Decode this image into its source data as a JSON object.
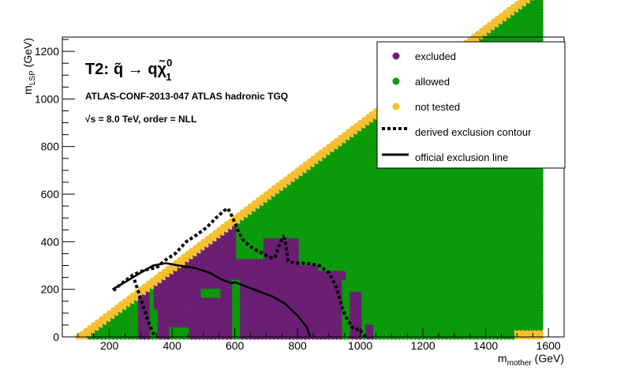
{
  "chart_data": {
    "type": "scatter",
    "title_prefix": "T2:",
    "process": "q̃ → qχ̃",
    "process_sup": "0",
    "process_sub": "1",
    "analysis": "ATLAS-CONF-2013-047  ATLAS hadronic TGQ",
    "energy_sqrt": "√s",
    "energy_rest": " =  8.0 TeV, order =  NLL",
    "xlabel_main": "m",
    "xlabel_sub": "mother",
    "xlabel_unit": " (GeV)",
    "ylabel_main": "m",
    "ylabel_sub": "LSP",
    "ylabel_unit": " (GeV)",
    "xlim": [
      50,
      1650
    ],
    "ylim": [
      0,
      1260
    ],
    "xticks": [
      200,
      400,
      600,
      800,
      1000,
      1200,
      1400,
      1600
    ],
    "yticks": [
      0,
      200,
      400,
      600,
      800,
      1000,
      1200
    ],
    "grid": "points every 12.5 GeV for m_mother from 100 to 1575 and m_LSP from 0 to m_mother - 100",
    "colors": {
      "excluded": "#6a1f73",
      "allowed": "#0a9a0a",
      "not_tested": "#f6c030"
    },
    "legend": [
      {
        "label": "excluded",
        "marker": "dot",
        "color": "#6a1f73"
      },
      {
        "label": "allowed",
        "marker": "dot",
        "color": "#0a9a0a"
      },
      {
        "label": "not tested",
        "marker": "dot",
        "color": "#f6c030"
      },
      {
        "label": "derived exclusion contour",
        "marker": "dashed",
        "color": "#000000"
      },
      {
        "label": "official exclusion line",
        "marker": "solid",
        "color": "#000000"
      }
    ],
    "legend_position": "top-right",
    "excluded_regions": [
      {
        "xmin": 290,
        "xmax": 330,
        "ymin": 0,
        "ymax": 280
      },
      {
        "xmin": 350,
        "xmax": 600,
        "ymin": 0,
        "ymax": 520
      },
      {
        "xmin": 610,
        "xmax": 690,
        "ymin": 0,
        "ymax": 330
      },
      {
        "xmin": 690,
        "xmax": 810,
        "ymin": 0,
        "ymax": 420
      },
      {
        "xmin": 810,
        "xmax": 870,
        "ymin": 0,
        "ymax": 310
      },
      {
        "xmin": 870,
        "xmax": 950,
        "ymin": 0,
        "ymax": 280
      },
      {
        "xmin": 965,
        "xmax": 1000,
        "ymin": 0,
        "ymax": 190
      },
      {
        "xmin": 1025,
        "xmax": 1045,
        "ymin": 0,
        "ymax": 60
      }
    ],
    "allowed_pockets": [
      {
        "xmin": 590,
        "xmax": 622,
        "ymin": 0,
        "ymax": 240
      },
      {
        "xmin": 940,
        "xmax": 970,
        "ymin": 0,
        "ymax": 240
      },
      {
        "xmin": 340,
        "xmax": 360,
        "ymin": 0,
        "ymax": 120
      },
      {
        "xmin": 395,
        "xmax": 460,
        "ymin": 0,
        "ymax": 40
      },
      {
        "xmin": 500,
        "xmax": 560,
        "ymin": 170,
        "ymax": 200
      }
    ],
    "derived_contour": {
      "x": [
        213,
        235,
        255,
        275,
        300,
        325,
        350,
        375,
        410,
        445,
        480,
        510,
        540,
        565,
        578,
        590,
        600,
        612,
        625,
        640,
        660,
        690,
        720,
        730,
        740,
        750,
        755,
        760,
        770,
        790,
        830,
        870,
        900,
        920,
        935,
        945,
        960,
        975,
        985,
        995,
        1005,
        1012,
        1015
      ],
      "y": [
        195,
        220,
        240,
        260,
        275,
        285,
        290,
        320,
        350,
        400,
        430,
        460,
        500,
        530,
        540,
        510,
        480,
        440,
        410,
        390,
        370,
        350,
        330,
        340,
        380,
        410,
        420,
        410,
        320,
        310,
        310,
        300,
        270,
        220,
        160,
        110,
        70,
        40,
        30,
        35,
        20,
        10,
        0
      ]
    },
    "official_line": {
      "x": [
        210,
        250,
        300,
        340,
        380,
        420,
        470,
        520,
        560,
        580,
        590,
        600,
        640,
        680,
        720,
        760,
        800,
        830,
        840
      ],
      "y": [
        200,
        230,
        270,
        300,
        310,
        300,
        290,
        270,
        240,
        230,
        225,
        230,
        210,
        190,
        170,
        140,
        90,
        40,
        0
      ]
    },
    "secondary_contour": {
      "x": [
        280,
        300,
        320,
        335,
        345
      ],
      "y": [
        240,
        160,
        80,
        30,
        0
      ]
    }
  }
}
